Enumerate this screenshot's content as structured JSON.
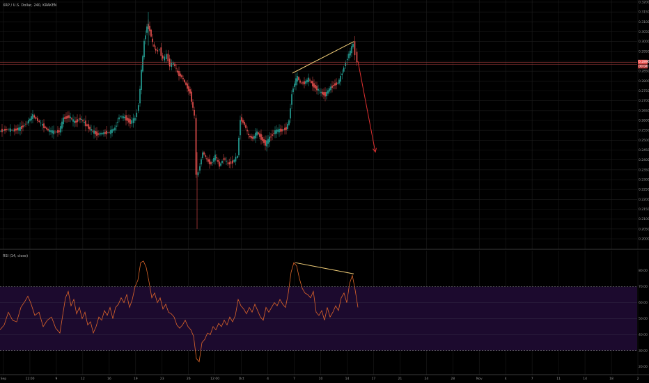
{
  "header": {
    "symbol": "XRP / U.S. Dollar, 240, KRAKEN"
  },
  "indicator": {
    "label": "RSI (14, close)"
  },
  "colors": {
    "background": "#000000",
    "grid": "#1c1c1c",
    "up": "#26a69a",
    "down": "#ef5350",
    "wick": "#8a8a8a",
    "rsi_line": "#e0662a",
    "rsi_band": "#1c0a2e",
    "hline": "#b04040",
    "trendline": "#f0cd78",
    "arrow": "#e03030"
  },
  "chart_data": [
    {
      "type": "candlestick",
      "title": "XRP / U.S. Dollar, 240, KRAKEN",
      "x_ticks": [
        "Sep",
        "12:00",
        "9",
        "12",
        "16",
        "19",
        "23",
        "26",
        "12:00",
        "Oct",
        "4",
        "7",
        "10",
        "14",
        "17",
        "21",
        "24",
        "28",
        "Nov",
        "4",
        "7",
        "11",
        "14",
        "18",
        "2"
      ],
      "ylim": [
        0.2,
        0.32
      ],
      "y_ticks": [
        "0.32000",
        "0.31500",
        "0.31000",
        "0.30500",
        "0.30000",
        "0.29500",
        "0.29000",
        "0.28500",
        "0.28000",
        "0.27500",
        "0.27000",
        "0.26500",
        "0.26000",
        "0.25500",
        "0.25000",
        "0.24500",
        "0.24000",
        "0.23500",
        "0.23000",
        "0.22500",
        "0.22000",
        "0.21500",
        "0.21000",
        "0.20500",
        "0.20000"
      ],
      "price_labels": [
        "0.28967",
        "00:04:07"
      ],
      "close_series": [
        [
          0,
          0.2545
        ],
        [
          10,
          0.2555
        ],
        [
          20,
          0.255
        ],
        [
          30,
          0.256
        ],
        [
          40,
          0.259
        ],
        [
          48,
          0.2625
        ],
        [
          55,
          0.26
        ],
        [
          62,
          0.2575
        ],
        [
          70,
          0.255
        ],
        [
          78,
          0.254
        ],
        [
          86,
          0.2545
        ],
        [
          92,
          0.261
        ],
        [
          100,
          0.262
        ],
        [
          108,
          0.259
        ],
        [
          116,
          0.261
        ],
        [
          124,
          0.258
        ],
        [
          132,
          0.255
        ],
        [
          140,
          0.253
        ],
        [
          148,
          0.2535
        ],
        [
          158,
          0.254
        ],
        [
          166,
          0.256
        ],
        [
          172,
          0.262
        ],
        [
          180,
          0.2615
        ],
        [
          188,
          0.259
        ],
        [
          195,
          0.261
        ],
        [
          200,
          0.268
        ],
        [
          204,
          0.285
        ],
        [
          208,
          0.3
        ],
        [
          212,
          0.308
        ],
        [
          216,
          0.306
        ],
        [
          220,
          0.299
        ],
        [
          225,
          0.295
        ],
        [
          230,
          0.296
        ],
        [
          235,
          0.291
        ],
        [
          240,
          0.293
        ],
        [
          245,
          0.288
        ],
        [
          250,
          0.289
        ],
        [
          256,
          0.284
        ],
        [
          262,
          0.282
        ],
        [
          268,
          0.278
        ],
        [
          274,
          0.274
        ],
        [
          280,
          0.262
        ],
        [
          283,
          0.232
        ],
        [
          286,
          0.234
        ],
        [
          292,
          0.244
        ],
        [
          298,
          0.24
        ],
        [
          304,
          0.238
        ],
        [
          310,
          0.242
        ],
        [
          316,
          0.237
        ],
        [
          322,
          0.241
        ],
        [
          328,
          0.238
        ],
        [
          335,
          0.239
        ],
        [
          342,
          0.242
        ],
        [
          346,
          0.261
        ],
        [
          352,
          0.258
        ],
        [
          358,
          0.252
        ],
        [
          364,
          0.251
        ],
        [
          370,
          0.254
        ],
        [
          376,
          0.251
        ],
        [
          382,
          0.248
        ],
        [
          388,
          0.251
        ],
        [
          394,
          0.254
        ],
        [
          400,
          0.255
        ],
        [
          406,
          0.255
        ],
        [
          412,
          0.256
        ],
        [
          416,
          0.26
        ],
        [
          420,
          0.274
        ],
        [
          424,
          0.279
        ],
        [
          428,
          0.282
        ],
        [
          432,
          0.279
        ],
        [
          438,
          0.279
        ],
        [
          444,
          0.281
        ],
        [
          450,
          0.278
        ],
        [
          456,
          0.276
        ],
        [
          462,
          0.274
        ],
        [
          468,
          0.273
        ],
        [
          474,
          0.276
        ],
        [
          480,
          0.278
        ],
        [
          486,
          0.279
        ],
        [
          490,
          0.282
        ],
        [
          495,
          0.287
        ],
        [
          500,
          0.292
        ],
        [
          504,
          0.295
        ],
        [
          508,
          0.299
        ],
        [
          511,
          0.294
        ],
        [
          514,
          0.29
        ]
      ],
      "horizontal_line": {
        "value": 0.289,
        "label": "0.28967"
      },
      "trendline": {
        "from": [
          420,
          0.284
        ],
        "to": [
          508,
          0.3
        ]
      },
      "projection_arrow": {
        "from": [
          514,
          0.29
        ],
        "to": [
          539,
          0.244
        ]
      }
    },
    {
      "type": "line",
      "title": "RSI (14, close)",
      "ylim": [
        18,
        89
      ],
      "y_ticks": [
        "80.00",
        "70.00",
        "60.00",
        "50.00",
        "40.00",
        "30.00",
        "20.00"
      ],
      "overbought": 70,
      "oversold": 30,
      "gridlines": [
        60,
        50,
        40
      ],
      "series": [
        [
          0,
          43
        ],
        [
          6,
          46
        ],
        [
          12,
          54
        ],
        [
          18,
          49
        ],
        [
          24,
          48
        ],
        [
          30,
          57
        ],
        [
          36,
          61
        ],
        [
          40,
          64
        ],
        [
          44,
          60
        ],
        [
          50,
          52
        ],
        [
          56,
          54
        ],
        [
          62,
          45
        ],
        [
          68,
          49
        ],
        [
          74,
          51
        ],
        [
          80,
          44
        ],
        [
          86,
          41
        ],
        [
          90,
          52
        ],
        [
          94,
          63
        ],
        [
          98,
          67
        ],
        [
          102,
          58
        ],
        [
          106,
          62
        ],
        [
          110,
          53
        ],
        [
          114,
          57
        ],
        [
          118,
          50
        ],
        [
          122,
          54
        ],
        [
          126,
          46
        ],
        [
          130,
          48
        ],
        [
          134,
          41
        ],
        [
          138,
          45
        ],
        [
          142,
          51
        ],
        [
          146,
          49
        ],
        [
          150,
          55
        ],
        [
          154,
          52
        ],
        [
          158,
          57
        ],
        [
          162,
          50
        ],
        [
          166,
          57
        ],
        [
          170,
          59
        ],
        [
          174,
          63
        ],
        [
          178,
          60
        ],
        [
          182,
          65
        ],
        [
          186,
          57
        ],
        [
          190,
          62
        ],
        [
          194,
          70
        ],
        [
          198,
          74
        ],
        [
          202,
          85
        ],
        [
          206,
          86
        ],
        [
          210,
          82
        ],
        [
          214,
          73
        ],
        [
          218,
          63
        ],
        [
          222,
          66
        ],
        [
          226,
          60
        ],
        [
          230,
          63
        ],
        [
          234,
          56
        ],
        [
          238,
          59
        ],
        [
          242,
          54
        ],
        [
          246,
          53
        ],
        [
          250,
          51
        ],
        [
          254,
          46
        ],
        [
          258,
          44
        ],
        [
          262,
          46
        ],
        [
          266,
          49
        ],
        [
          270,
          45
        ],
        [
          274,
          43
        ],
        [
          278,
          39
        ],
        [
          282,
          25
        ],
        [
          286,
          23
        ],
        [
          290,
          35
        ],
        [
          294,
          37
        ],
        [
          298,
          41
        ],
        [
          302,
          40
        ],
        [
          306,
          45
        ],
        [
          310,
          43
        ],
        [
          314,
          47
        ],
        [
          318,
          45
        ],
        [
          322,
          49
        ],
        [
          326,
          46
        ],
        [
          330,
          51
        ],
        [
          334,
          48
        ],
        [
          338,
          52
        ],
        [
          342,
          62
        ],
        [
          346,
          58
        ],
        [
          350,
          56
        ],
        [
          354,
          53
        ],
        [
          358,
          57
        ],
        [
          362,
          54
        ],
        [
          366,
          59
        ],
        [
          370,
          55
        ],
        [
          374,
          51
        ],
        [
          378,
          49
        ],
        [
          382,
          57
        ],
        [
          386,
          54
        ],
        [
          390,
          57
        ],
        [
          394,
          60
        ],
        [
          398,
          58
        ],
        [
          402,
          62
        ],
        [
          406,
          59
        ],
        [
          410,
          57
        ],
        [
          414,
          66
        ],
        [
          418,
          79
        ],
        [
          422,
          85
        ],
        [
          426,
          83
        ],
        [
          430,
          75
        ],
        [
          434,
          69
        ],
        [
          438,
          66
        ],
        [
          442,
          65
        ],
        [
          446,
          63
        ],
        [
          450,
          67
        ],
        [
          454,
          54
        ],
        [
          458,
          52
        ],
        [
          462,
          55
        ],
        [
          466,
          49
        ],
        [
          470,
          57
        ],
        [
          474,
          51
        ],
        [
          478,
          54
        ],
        [
          482,
          58
        ],
        [
          486,
          55
        ],
        [
          490,
          63
        ],
        [
          494,
          66
        ],
        [
          498,
          60
        ],
        [
          502,
          72
        ],
        [
          506,
          77
        ],
        [
          510,
          68
        ],
        [
          514,
          57
        ]
      ],
      "divergence_line": {
        "from": [
          424,
          85
        ],
        "to": [
          508,
          78
        ]
      }
    }
  ]
}
